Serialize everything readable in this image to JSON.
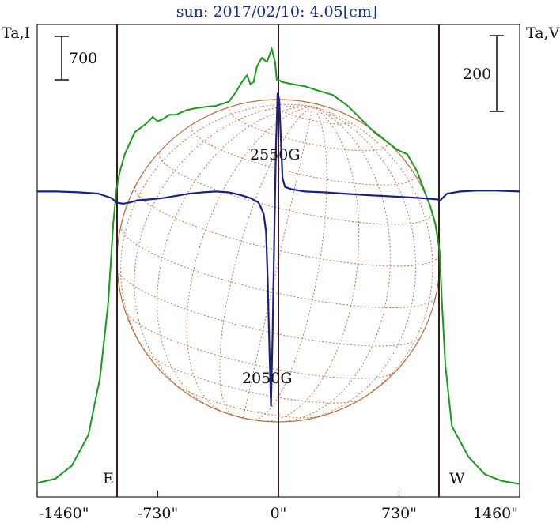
{
  "chart_data": {
    "type": "line",
    "title": "sun: 2017/02/10: 4.05[cm]",
    "left_axis_label": "Ta,I",
    "right_axis_label": "Ta,V",
    "scale_bar_left": "700",
    "scale_bar_right": "200",
    "xlim": [
      -1460,
      1460
    ],
    "x_ticks": [
      -1460,
      -730,
      0,
      730,
      1460
    ],
    "x_tick_labels": [
      "-1460\"",
      "-730\"",
      "0\"",
      "730\"",
      "1460\""
    ],
    "limb_markers": [
      -980,
      0,
      980
    ],
    "east_label": "E",
    "west_label": "W",
    "annotations": [
      {
        "text": "2550G",
        "x": 0,
        "series": "V"
      },
      {
        "text": "2050G",
        "x": -40,
        "series": "V"
      }
    ],
    "series": [
      {
        "key": "I",
        "color": "#1a9a1a",
        "ylim": [
          0,
          1000
        ],
        "x": [
          -1460,
          -1350,
          -1250,
          -1150,
          -1080,
          -1030,
          -1000,
          -980,
          -960,
          -930,
          -870,
          -800,
          -760,
          -730,
          -700,
          -660,
          -620,
          -560,
          -500,
          -440,
          -380,
          -340,
          -300,
          -260,
          -220,
          -190,
          -170,
          -150,
          -130,
          -100,
          -70,
          -40,
          -20,
          -10,
          0,
          20,
          80,
          160,
          240,
          330,
          420,
          500,
          580,
          650,
          720,
          780,
          840,
          880,
          920,
          950,
          975,
          990,
          1010,
          1050,
          1150,
          1250,
          1350,
          1460
        ],
        "y": [
          10,
          20,
          50,
          120,
          250,
          420,
          600,
          680,
          720,
          760,
          810,
          830,
          845,
          835,
          840,
          850,
          850,
          860,
          865,
          868,
          870,
          875,
          880,
          900,
          925,
          940,
          920,
          925,
          960,
          980,
          970,
          1000,
          970,
          930,
          930,
          925,
          920,
          915,
          905,
          895,
          870,
          840,
          810,
          790,
          770,
          760,
          720,
          680,
          640,
          600,
          540,
          420,
          280,
          140,
          70,
          30,
          15,
          8
        ]
      },
      {
        "key": "V",
        "color": "#1a1f8a",
        "ylim": [
          -675,
          325
        ],
        "x": [
          -1460,
          -1340,
          -1200,
          -1090,
          -1010,
          -980,
          -940,
          -900,
          -850,
          -780,
          -700,
          -620,
          -540,
          -460,
          -380,
          -300,
          -230,
          -170,
          -120,
          -90,
          -75,
          -65,
          -55,
          -45,
          -35,
          -25,
          -15,
          -5,
          5,
          15,
          25,
          40,
          80,
          160,
          280,
          400,
          520,
          620,
          720,
          820,
          900,
          960,
          980,
          1020,
          1100,
          1200,
          1320,
          1460
        ],
        "y": [
          0,
          0,
          -2,
          -5,
          -15,
          -25,
          -28,
          -25,
          -20,
          -18,
          -15,
          -10,
          -5,
          -2,
          0,
          -2,
          -8,
          -15,
          -25,
          -50,
          -90,
          -200,
          -350,
          -490,
          -320,
          -100,
          100,
          225,
          210,
          120,
          30,
          10,
          5,
          0,
          -2,
          -5,
          -8,
          -10,
          -12,
          -14,
          -16,
          -18,
          -20,
          -5,
          0,
          2,
          2,
          0
        ]
      }
    ],
    "solar_disk": {
      "radius": 980,
      "grid_color": "#b86a3a"
    }
  }
}
